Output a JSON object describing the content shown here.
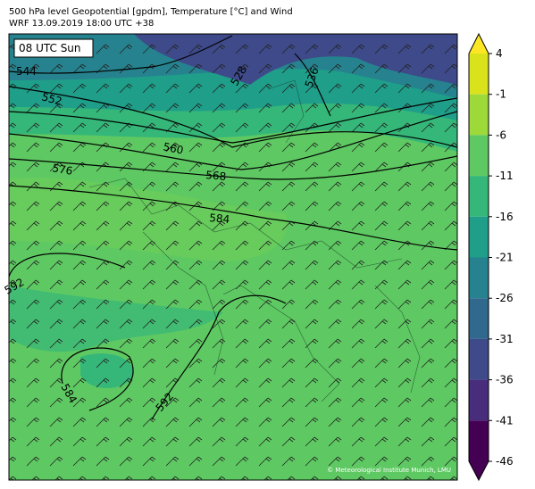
{
  "header": {
    "title_line1": "500 hPa level Geopotential [gpdm], Temperature [°C] and Wind",
    "title_line2": "WRF 13.09.2019 18:00 UTC +38"
  },
  "map": {
    "time_label": "08 UTC Sun",
    "credit": "© Meteorological Institute Munich, LMU",
    "contour_labels": [
      "544",
      "552",
      "528",
      "536",
      "560",
      "568",
      "576",
      "584",
      "592",
      "584",
      "592"
    ]
  },
  "colorbar": {
    "ticks": [
      4,
      -1,
      -6,
      -11,
      -16,
      -21,
      -26,
      -31,
      -36,
      -41,
      -46
    ],
    "colors": [
      "#d9e21b",
      "#9ed93a",
      "#5ec962",
      "#35b779",
      "#1f9e89",
      "#26828e",
      "#31688e",
      "#3e4a89",
      "#472d7b",
      "#440154"
    ],
    "over_color": "#fde725",
    "under_color": "#440154"
  }
}
